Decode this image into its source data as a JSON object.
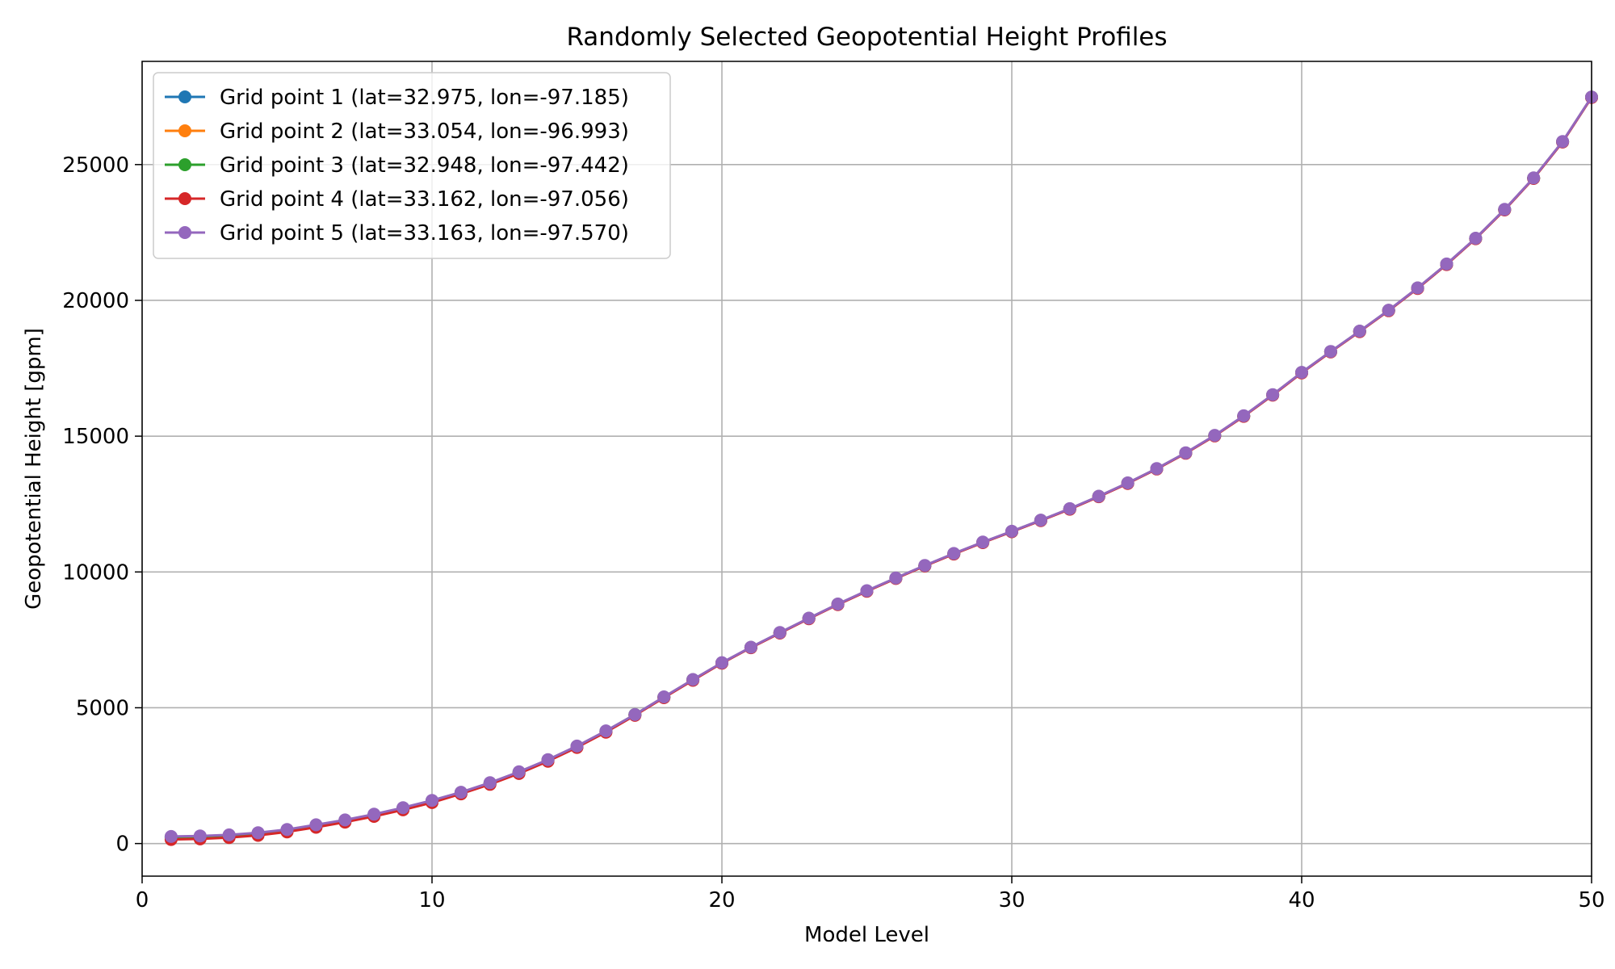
{
  "chart_data": {
    "type": "line",
    "title": "Randomly Selected Geopotential Height Profiles",
    "xlabel": "Model Level",
    "ylabel": "Geopotential Height [gpm]",
    "xlim": [
      0,
      50
    ],
    "ylim": [
      -1200,
      28800
    ],
    "xticks": [
      0,
      10,
      20,
      30,
      40,
      50
    ],
    "yticks": [
      0,
      5000,
      10000,
      15000,
      20000,
      25000
    ],
    "grid": true,
    "legend_position": "top-left",
    "markers": true,
    "x": [
      1,
      2,
      3,
      4,
      5,
      6,
      7,
      8,
      9,
      10,
      11,
      12,
      13,
      14,
      15,
      16,
      17,
      18,
      19,
      20,
      21,
      22,
      23,
      24,
      25,
      26,
      27,
      28,
      29,
      30,
      31,
      32,
      33,
      34,
      35,
      36,
      37,
      38,
      39,
      40,
      41,
      42,
      43,
      44,
      45,
      46,
      47,
      48,
      49,
      50
    ],
    "series": [
      {
        "name": "Grid point 1 (lat=32.975, lon=-97.185)",
        "color": "#1f77b4",
        "values": [
          230,
          250,
          290,
          370,
          490,
          660,
          850,
          1060,
          1300,
          1570,
          1870,
          2220,
          2620,
          3070,
          3570,
          4130,
          4740,
          5390,
          6030,
          6650,
          7220,
          7760,
          8290,
          8810,
          9300,
          9770,
          10230,
          10670,
          11090,
          11490,
          11900,
          12320,
          12780,
          13270,
          13800,
          14380,
          15020,
          15740,
          16520,
          17340,
          18110,
          18860,
          19630,
          20450,
          21330,
          22280,
          23340,
          24500,
          25840,
          27480
        ]
      },
      {
        "name": "Grid point 2 (lat=33.054, lon=-96.993)",
        "color": "#ff7f0e",
        "values": [
          190,
          210,
          250,
          330,
          460,
          630,
          820,
          1040,
          1280,
          1550,
          1860,
          2210,
          2610,
          3060,
          3560,
          4120,
          4740,
          5390,
          6030,
          6650,
          7220,
          7760,
          8290,
          8810,
          9300,
          9770,
          10230,
          10670,
          11090,
          11490,
          11900,
          12320,
          12780,
          13270,
          13800,
          14380,
          15020,
          15740,
          16520,
          17340,
          18110,
          18860,
          19630,
          20450,
          21330,
          22280,
          23340,
          24500,
          25840,
          27480
        ]
      },
      {
        "name": "Grid point 3 (lat=32.948, lon=-97.442)",
        "color": "#2ca02c",
        "values": [
          240,
          260,
          300,
          380,
          500,
          670,
          860,
          1070,
          1310,
          1580,
          1880,
          2230,
          2630,
          3080,
          3580,
          4140,
          4750,
          5390,
          6030,
          6650,
          7220,
          7760,
          8290,
          8810,
          9300,
          9770,
          10230,
          10670,
          11090,
          11490,
          11900,
          12320,
          12780,
          13270,
          13800,
          14380,
          15020,
          15740,
          16520,
          17340,
          18110,
          18860,
          19630,
          20450,
          21330,
          22280,
          23340,
          24500,
          25840,
          27480
        ]
      },
      {
        "name": "Grid point 4 (lat=33.162, lon=-97.056)",
        "color": "#d62728",
        "values": [
          150,
          170,
          220,
          300,
          430,
          600,
          790,
          1000,
          1240,
          1510,
          1830,
          2180,
          2580,
          3030,
          3540,
          4100,
          4720,
          5370,
          6010,
          6640,
          7210,
          7750,
          8280,
          8800,
          9290,
          9760,
          10220,
          10660,
          11080,
          11480,
          11890,
          12310,
          12770,
          13260,
          13790,
          14370,
          15010,
          15730,
          16510,
          17330,
          18100,
          18850,
          19620,
          20440,
          21320,
          22270,
          23330,
          24490,
          25830,
          27470
        ]
      },
      {
        "name": "Grid point 5 (lat=33.163, lon=-97.570)",
        "color": "#9467bd",
        "values": [
          260,
          280,
          320,
          400,
          520,
          690,
          870,
          1080,
          1320,
          1590,
          1890,
          2240,
          2640,
          3090,
          3590,
          4150,
          4750,
          5400,
          6040,
          6660,
          7230,
          7770,
          8300,
          8820,
          9310,
          9780,
          10240,
          10680,
          11100,
          11500,
          11910,
          12330,
          12790,
          13280,
          13810,
          14390,
          15030,
          15750,
          16530,
          17350,
          18120,
          18870,
          19640,
          20460,
          21340,
          22290,
          23350,
          24510,
          25850,
          27490
        ]
      }
    ]
  }
}
